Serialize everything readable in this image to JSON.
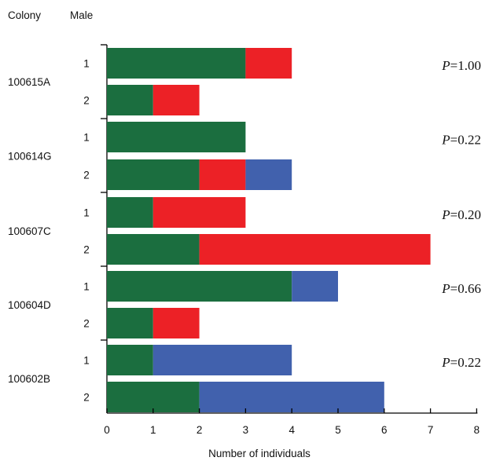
{
  "chart_data": {
    "type": "bar",
    "orientation": "horizontal",
    "stacked": true,
    "header": {
      "colony_label": "Colony",
      "male_label": "Male"
    },
    "xlabel": "Number of individuals",
    "xlim": [
      0,
      8
    ],
    "x_ticks": [
      "0",
      "1",
      "2",
      "3",
      "4",
      "5",
      "6",
      "7",
      "8"
    ],
    "segment_colors": [
      "#1b6e3f",
      "#ec2126",
      "#4161ad"
    ],
    "p_prefix": "P",
    "grid": false,
    "legend": "none",
    "groups": [
      {
        "colony": "100615A",
        "p_value": "=1.00",
        "males": [
          {
            "male": "1",
            "segments": [
              3,
              1,
              0
            ]
          },
          {
            "male": "2",
            "segments": [
              1,
              1,
              0
            ]
          }
        ]
      },
      {
        "colony": "100614G",
        "p_value": "=0.22",
        "males": [
          {
            "male": "1",
            "segments": [
              3,
              0,
              0
            ]
          },
          {
            "male": "2",
            "segments": [
              2,
              1,
              1
            ]
          }
        ]
      },
      {
        "colony": "100607C",
        "p_value": "=0.20",
        "males": [
          {
            "male": "1",
            "segments": [
              1,
              2,
              0
            ]
          },
          {
            "male": "2",
            "segments": [
              2,
              5,
              0
            ]
          }
        ]
      },
      {
        "colony": "100604D",
        "p_value": "=0.66",
        "males": [
          {
            "male": "1",
            "segments": [
              4,
              0,
              1
            ]
          },
          {
            "male": "2",
            "segments": [
              1,
              1,
              0
            ]
          }
        ]
      },
      {
        "colony": "100602B",
        "p_value": "=0.22",
        "males": [
          {
            "male": "1",
            "segments": [
              1,
              0,
              3
            ]
          },
          {
            "male": "2",
            "segments": [
              2,
              0,
              4
            ]
          }
        ]
      }
    ]
  }
}
